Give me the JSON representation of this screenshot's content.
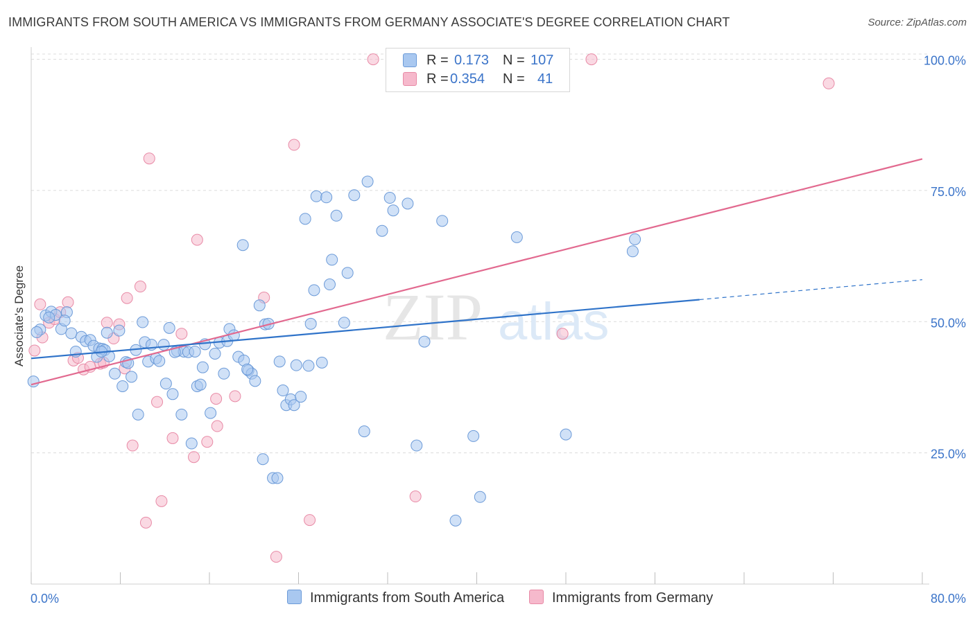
{
  "title": "IMMIGRANTS FROM SOUTH AMERICA VS IMMIGRANTS FROM GERMANY ASSOCIATE'S DEGREE CORRELATION CHART",
  "source": "Source: ZipAtlas.com",
  "watermark": {
    "zip": "ZIP",
    "atlas": "atlas"
  },
  "legend_top": {
    "rows": [
      {
        "r_label": "R =",
        "r_value": "0.173",
        "n_label": "N =",
        "n_value": "107",
        "color": "#a9c8f0"
      },
      {
        "r_label": "R =",
        "r_value": "0.354",
        "n_label": "N =",
        "n_value": "41",
        "color": "#f6b9cc"
      }
    ]
  },
  "colors": {
    "blue_fill": "#a9c8f0",
    "blue_stroke": "#6b9ad8",
    "blue_line": "#2f73c9",
    "pink_fill": "#f6b9cc",
    "pink_stroke": "#e88aa6",
    "pink_line": "#e2698f",
    "tick_text": "#3b74c9",
    "grid": "#dcdcdc"
  },
  "chart_data": {
    "type": "scatter",
    "title": "IMMIGRANTS FROM SOUTH AMERICA VS IMMIGRANTS FROM GERMANY ASSOCIATE'S DEGREE CORRELATION CHART",
    "xlabel": "",
    "ylabel": "Associate's Degree",
    "xlim": [
      0,
      80
    ],
    "ylim": [
      0,
      101
    ],
    "x_tick_labels": [
      "0.0%",
      "80.0%"
    ],
    "y_ticks": [
      25,
      50,
      75,
      100
    ],
    "y_tick_labels": [
      "25.0%",
      "50.0%",
      "75.0%",
      "100.0%"
    ],
    "grid": true,
    "legend_position": "bottom",
    "series": [
      {
        "name": "Immigrants from South America",
        "R": 0.173,
        "N": 107,
        "trend": {
          "x0": 0,
          "y0": 43.0,
          "x1": 60,
          "y1": 54.2,
          "dashed_to_x": 80,
          "dashed_y": 58.0
        },
        "points": [
          [
            0.2,
            38.6
          ],
          [
            0.8,
            48.5
          ],
          [
            1.3,
            51.2
          ],
          [
            1.8,
            51.9
          ],
          [
            2.2,
            51.3
          ],
          [
            2.7,
            48.6
          ],
          [
            3.2,
            51.8
          ],
          [
            3.6,
            47.8
          ],
          [
            4.0,
            44.3
          ],
          [
            4.5,
            47.1
          ],
          [
            4.9,
            46.3
          ],
          [
            5.3,
            46.5
          ],
          [
            5.6,
            45.4
          ],
          [
            5.9,
            43.3
          ],
          [
            6.1,
            44.9
          ],
          [
            6.4,
            44.8
          ],
          [
            6.6,
            44.6
          ],
          [
            6.8,
            47.9
          ],
          [
            7.0,
            43.4
          ],
          [
            7.5,
            40.1
          ],
          [
            7.9,
            48.3
          ],
          [
            8.2,
            37.7
          ],
          [
            8.5,
            42.3
          ],
          [
            8.7,
            42.1
          ],
          [
            9.0,
            39.5
          ],
          [
            9.4,
            44.6
          ],
          [
            9.6,
            32.3
          ],
          [
            10.0,
            49.9
          ],
          [
            10.2,
            46.1
          ],
          [
            10.5,
            42.4
          ],
          [
            10.8,
            45.6
          ],
          [
            11.2,
            43.0
          ],
          [
            11.5,
            42.5
          ],
          [
            11.9,
            45.6
          ],
          [
            12.1,
            38.2
          ],
          [
            12.4,
            48.8
          ],
          [
            12.7,
            36.2
          ],
          [
            13.1,
            44.4
          ],
          [
            13.5,
            32.3
          ],
          [
            13.7,
            44.3
          ],
          [
            14.1,
            44.2
          ],
          [
            14.4,
            26.8
          ],
          [
            14.7,
            44.3
          ],
          [
            14.9,
            37.7
          ],
          [
            15.2,
            38.0
          ],
          [
            15.4,
            41.3
          ],
          [
            15.6,
            45.7
          ],
          [
            16.1,
            32.6
          ],
          [
            16.5,
            43.9
          ],
          [
            16.9,
            46.0
          ],
          [
            17.3,
            40.1
          ],
          [
            17.6,
            46.3
          ],
          [
            17.8,
            48.6
          ],
          [
            18.2,
            47.4
          ],
          [
            18.6,
            43.3
          ],
          [
            19.0,
            64.6
          ],
          [
            19.1,
            42.6
          ],
          [
            19.5,
            40.7
          ],
          [
            19.8,
            40.1
          ],
          [
            20.1,
            38.7
          ],
          [
            20.5,
            53.1
          ],
          [
            20.8,
            23.8
          ],
          [
            21.0,
            49.5
          ],
          [
            21.3,
            49.6
          ],
          [
            21.7,
            20.2
          ],
          [
            22.1,
            20.2
          ],
          [
            22.3,
            42.4
          ],
          [
            22.6,
            36.9
          ],
          [
            22.9,
            34.1
          ],
          [
            23.3,
            35.2
          ],
          [
            23.6,
            34.1
          ],
          [
            23.8,
            41.7
          ],
          [
            24.2,
            35.7
          ],
          [
            24.6,
            69.6
          ],
          [
            25.1,
            49.6
          ],
          [
            25.4,
            56.0
          ],
          [
            25.6,
            73.9
          ],
          [
            26.1,
            42.2
          ],
          [
            26.5,
            73.7
          ],
          [
            26.8,
            57.1
          ],
          [
            27.4,
            70.2
          ],
          [
            27.0,
            61.8
          ],
          [
            28.1,
            49.8
          ],
          [
            28.4,
            59.3
          ],
          [
            29.0,
            74.1
          ],
          [
            29.9,
            29.1
          ],
          [
            30.2,
            76.7
          ],
          [
            31.5,
            67.3
          ],
          [
            32.2,
            73.6
          ],
          [
            32.5,
            71.2
          ],
          [
            33.8,
            72.5
          ],
          [
            34.6,
            26.4
          ],
          [
            35.3,
            46.2
          ],
          [
            36.9,
            69.2
          ],
          [
            38.1,
            12.1
          ],
          [
            39.7,
            28.2
          ],
          [
            40.3,
            16.6
          ],
          [
            43.6,
            66.1
          ],
          [
            48.0,
            28.5
          ],
          [
            54.0,
            63.4
          ],
          [
            54.2,
            65.7
          ],
          [
            0.5,
            48.0
          ],
          [
            1.6,
            50.8
          ],
          [
            3.0,
            50.2
          ],
          [
            6.3,
            44.3
          ],
          [
            12.9,
            44.2
          ],
          [
            19.4,
            40.9
          ],
          [
            24.9,
            41.6
          ]
        ]
      },
      {
        "name": "Immigrants from Germany",
        "R": 0.354,
        "N": 41,
        "trend": {
          "x0": 0,
          "y0": 38.0,
          "x1": 80,
          "y1": 81.0
        },
        "points": [
          [
            0.3,
            44.5
          ],
          [
            0.8,
            53.3
          ],
          [
            1.6,
            49.8
          ],
          [
            2.1,
            50.5
          ],
          [
            2.6,
            51.8
          ],
          [
            3.3,
            53.7
          ],
          [
            3.8,
            42.6
          ],
          [
            4.2,
            43.1
          ],
          [
            4.7,
            40.9
          ],
          [
            5.3,
            41.4
          ],
          [
            6.2,
            42.0
          ],
          [
            6.5,
            42.2
          ],
          [
            6.8,
            49.8
          ],
          [
            7.4,
            46.8
          ],
          [
            7.9,
            49.5
          ],
          [
            8.4,
            41.1
          ],
          [
            8.6,
            54.5
          ],
          [
            9.1,
            26.4
          ],
          [
            9.8,
            56.7
          ],
          [
            10.3,
            11.7
          ],
          [
            10.6,
            81.1
          ],
          [
            11.3,
            34.7
          ],
          [
            11.7,
            15.8
          ],
          [
            12.7,
            27.8
          ],
          [
            13.5,
            47.7
          ],
          [
            14.6,
            24.2
          ],
          [
            14.9,
            65.6
          ],
          [
            15.8,
            27.1
          ],
          [
            16.6,
            35.3
          ],
          [
            16.7,
            30.1
          ],
          [
            18.3,
            35.8
          ],
          [
            20.9,
            54.6
          ],
          [
            22.0,
            5.2
          ],
          [
            23.6,
            83.7
          ],
          [
            25.0,
            12.2
          ],
          [
            30.7,
            100.0
          ],
          [
            34.5,
            16.7
          ],
          [
            47.7,
            47.7
          ],
          [
            50.3,
            100.0
          ],
          [
            71.6,
            95.4
          ],
          [
            1.0,
            47.0
          ]
        ]
      }
    ]
  },
  "bottom_legend": [
    {
      "label": "Immigrants from South America",
      "color": "#a9c8f0"
    },
    {
      "label": "Immigrants from Germany",
      "color": "#f6b9cc"
    }
  ]
}
